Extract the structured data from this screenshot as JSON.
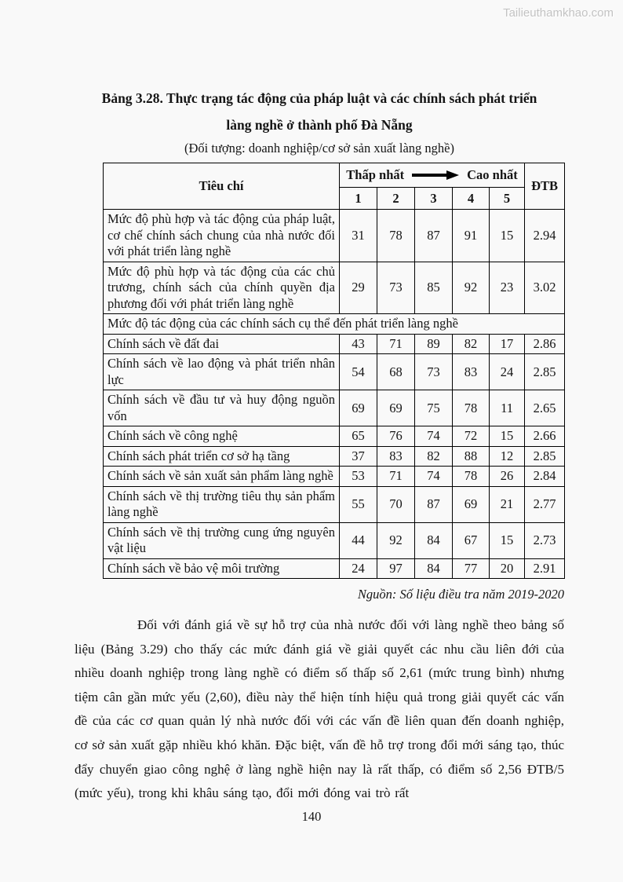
{
  "watermark": "Tailieuthamkhao.com",
  "title": {
    "line1": "Bảng 3.28. Thực trạng tác động của pháp luật và các chính sách phát triển",
    "line2": "làng nghề ở thành phố Đà Nẵng",
    "subtitle": "(Đối tượng: doanh nghiệp/cơ sở sản xuất làng nghề)"
  },
  "table": {
    "header": {
      "criteria": "Tiêu chí",
      "scale_low": "Thấp nhất",
      "scale_high": "Cao nhất",
      "arrow_icon": "arrow-right-icon",
      "avg": "ĐTB",
      "scale_cols": [
        "1",
        "2",
        "3",
        "4",
        "5"
      ]
    },
    "rows": [
      {
        "label": "Mức độ phù hợp và tác động của pháp luật, cơ chế chính sách chung của nhà nước đối với phát triển làng nghề",
        "values": [
          "31",
          "78",
          "87",
          "91",
          "15",
          "2.94"
        ]
      },
      {
        "label": "Mức độ phù hợp và tác động của các chủ trương, chính sách của chính quyền địa phương đối với phát triển làng nghề",
        "values": [
          "29",
          "73",
          "85",
          "92",
          "23",
          "3.02"
        ]
      },
      {
        "label": "Mức độ tác động của các chính sách cụ thể đến phát triển làng nghề",
        "span": true
      },
      {
        "label": "Chính sách về đất đai",
        "values": [
          "43",
          "71",
          "89",
          "82",
          "17",
          "2.86"
        ]
      },
      {
        "label": "Chính sách về lao động và phát triển nhân lực",
        "values": [
          "54",
          "68",
          "73",
          "83",
          "24",
          "2.85"
        ]
      },
      {
        "label": "Chính sách về đầu tư và huy động nguồn vốn",
        "values": [
          "69",
          "69",
          "75",
          "78",
          "11",
          "2.65"
        ]
      },
      {
        "label": "Chính sách về công nghệ",
        "values": [
          "65",
          "76",
          "74",
          "72",
          "15",
          "2.66"
        ]
      },
      {
        "label": "Chính sách phát triển cơ sở hạ tầng",
        "values": [
          "37",
          "83",
          "82",
          "88",
          "12",
          "2.85"
        ]
      },
      {
        "label": "Chính sách về sản xuất sản phẩm làng nghề",
        "values": [
          "53",
          "71",
          "74",
          "78",
          "26",
          "2.84"
        ]
      },
      {
        "label": "Chính sách về thị trường tiêu thụ sản phẩm làng nghề",
        "values": [
          "55",
          "70",
          "87",
          "69",
          "21",
          "2.77"
        ]
      },
      {
        "label": "Chính sách về thị trường cung ứng nguyên vật liệu",
        "values": [
          "44",
          "92",
          "84",
          "67",
          "15",
          "2.73"
        ]
      },
      {
        "label": "Chính sách về bảo vệ môi trường",
        "values": [
          "24",
          "97",
          "84",
          "77",
          "20",
          "2.91"
        ]
      }
    ]
  },
  "source": "Nguồn: Số liệu điều tra năm 2019-2020",
  "paragraph": "Đối với đánh giá về sự hỗ trợ của nhà nước đối với làng nghề theo bảng số liệu (Bảng 3.29) cho thấy các mức đánh giá về giải quyết các nhu cầu liên đới của nhiều doanh nghiệp trong làng nghề có điểm số thấp số 2,61 (mức trung bình) nhưng tiệm cân gần mức yếu (2,60), điều này thể hiện tính hiệu quả trong giải quyết các vấn đề của các cơ quan quản lý nhà nước đối với các vấn đề liên quan đến doanh nghiệp, cơ sở sản xuất gặp nhiều khó khăn. Đặc biệt, vấn đề hỗ trợ trong đổi mới sáng tạo, thúc đẩy chuyển giao công nghệ ở làng nghề hiện nay là rất thấp, có điểm số 2,56 ĐTB/5 (mức yếu), trong khi khâu sáng tạo, đổi mới đóng vai trò rất",
  "page_number": "140"
}
